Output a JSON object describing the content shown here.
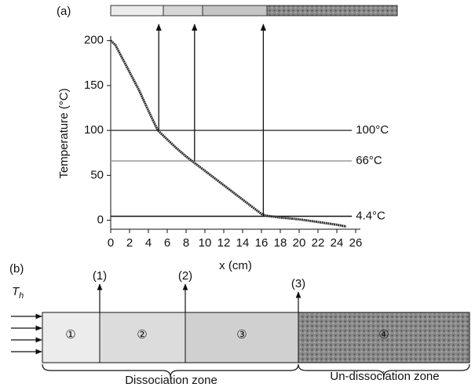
{
  "chart_data": {
    "type": "line",
    "panel_label": "(a)",
    "y_label": "Temperature (°C)",
    "x_label": "x (cm)",
    "x": [
      0,
      0.5,
      1,
      2,
      3,
      4,
      5,
      6,
      7,
      8,
      9,
      10,
      11,
      12,
      13,
      14,
      15,
      16,
      16.5,
      18,
      20,
      22,
      24,
      25
    ],
    "values": [
      200,
      195,
      185,
      165,
      145,
      122,
      100,
      90,
      80,
      71,
      63,
      55,
      47,
      39,
      31,
      23,
      15,
      7,
      5,
      3,
      1,
      -2,
      -5,
      -7
    ],
    "color": "#333333",
    "xlim": [
      0,
      26.5
    ],
    "ylim": [
      -10,
      205
    ],
    "xticks": [
      0,
      2,
      4,
      6,
      8,
      10,
      12,
      14,
      16,
      18,
      20,
      22,
      24,
      26
    ],
    "yticks": [
      0,
      50,
      100,
      150,
      200
    ],
    "reference_lines": [
      {
        "value": 100,
        "label": "100°C",
        "color": "#444444"
      },
      {
        "value": 66,
        "label": "66°C",
        "color": "#999999"
      },
      {
        "value": 4.4,
        "label": "4.4°C",
        "color": "#111111"
      }
    ],
    "arrows_x": [
      5.1,
      8.9,
      16.2
    ],
    "grid": false
  },
  "diagram": {
    "panel_label": "(b)",
    "inlet": {
      "symbol": "T",
      "subscript": "h"
    },
    "boundaries": [
      "(1)",
      "(2)",
      "(3)"
    ],
    "zones": [
      "①",
      "②",
      "③",
      "④"
    ],
    "zone_names": [
      "Dissociation zone",
      "Un-dissociation zone"
    ]
  }
}
